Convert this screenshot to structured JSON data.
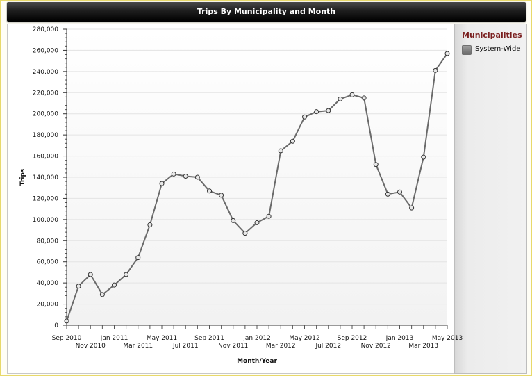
{
  "window": {
    "title": "Trips By Municipality and Month"
  },
  "legend": {
    "title": "Municipalities",
    "items": [
      {
        "label": "System-Wide",
        "color": "#6a6a6a"
      }
    ]
  },
  "chart_data": {
    "type": "line",
    "title": "Trips By Municipality and Month",
    "xlabel": "Month/Year",
    "ylabel": "Trips",
    "ylim": [
      0,
      280000
    ],
    "y_major_step": 20000,
    "grid": true,
    "legend_position": "right",
    "x": [
      "Sep 2010",
      "Oct 2010",
      "Nov 2010",
      "Dec 2010",
      "Jan 2011",
      "Feb 2011",
      "Mar 2011",
      "Apr 2011",
      "May 2011",
      "Jun 2011",
      "Jul 2011",
      "Aug 2011",
      "Sep 2011",
      "Oct 2011",
      "Nov 2011",
      "Dec 2011",
      "Jan 2012",
      "Feb 2012",
      "Mar 2012",
      "Apr 2012",
      "May 2012",
      "Jun 2012",
      "Jul 2012",
      "Aug 2012",
      "Sep 2012",
      "Oct 2012",
      "Nov 2012",
      "Dec 2012",
      "Jan 2013",
      "Feb 2013",
      "Mar 2013",
      "Apr 2013",
      "May 2013"
    ],
    "x_tick_labels": [
      {
        "label": "Sep 2010",
        "index": 0,
        "row": 0
      },
      {
        "label": "Nov 2010",
        "index": 2,
        "row": 1
      },
      {
        "label": "Jan 2011",
        "index": 4,
        "row": 0
      },
      {
        "label": "Mar 2011",
        "index": 6,
        "row": 1
      },
      {
        "label": "May 2011",
        "index": 8,
        "row": 0
      },
      {
        "label": "Jul 2011",
        "index": 10,
        "row": 1
      },
      {
        "label": "Sep 2011",
        "index": 12,
        "row": 0
      },
      {
        "label": "Nov 2011",
        "index": 14,
        "row": 1
      },
      {
        "label": "Jan 2012",
        "index": 16,
        "row": 0
      },
      {
        "label": "Mar 2012",
        "index": 18,
        "row": 1
      },
      {
        "label": "May 2012",
        "index": 20,
        "row": 0
      },
      {
        "label": "Jul 2012",
        "index": 22,
        "row": 1
      },
      {
        "label": "Sep 2012",
        "index": 24,
        "row": 0
      },
      {
        "label": "Nov 2012",
        "index": 26,
        "row": 1
      },
      {
        "label": "Jan 2013",
        "index": 28,
        "row": 0
      },
      {
        "label": "Mar 2013",
        "index": 30,
        "row": 1
      },
      {
        "label": "May 2013",
        "index": 32,
        "row": 0
      }
    ],
    "y_tick_labels": [
      "0",
      "20,000",
      "40,000",
      "60,000",
      "80,000",
      "100,000",
      "120,000",
      "140,000",
      "160,000",
      "180,000",
      "200,000",
      "220,000",
      "240,000",
      "260,000",
      "280,000"
    ],
    "series": [
      {
        "name": "System-Wide",
        "color": "#6a6a6a",
        "values": [
          4000,
          37000,
          48000,
          29000,
          38000,
          48000,
          64000,
          95000,
          134000,
          143000,
          141000,
          140000,
          127000,
          123000,
          99000,
          87000,
          97000,
          103000,
          165000,
          174000,
          197000,
          202000,
          203000,
          214000,
          218000,
          215000,
          152000,
          124000,
          126000,
          111000,
          159000,
          241000,
          257000
        ]
      }
    ]
  }
}
